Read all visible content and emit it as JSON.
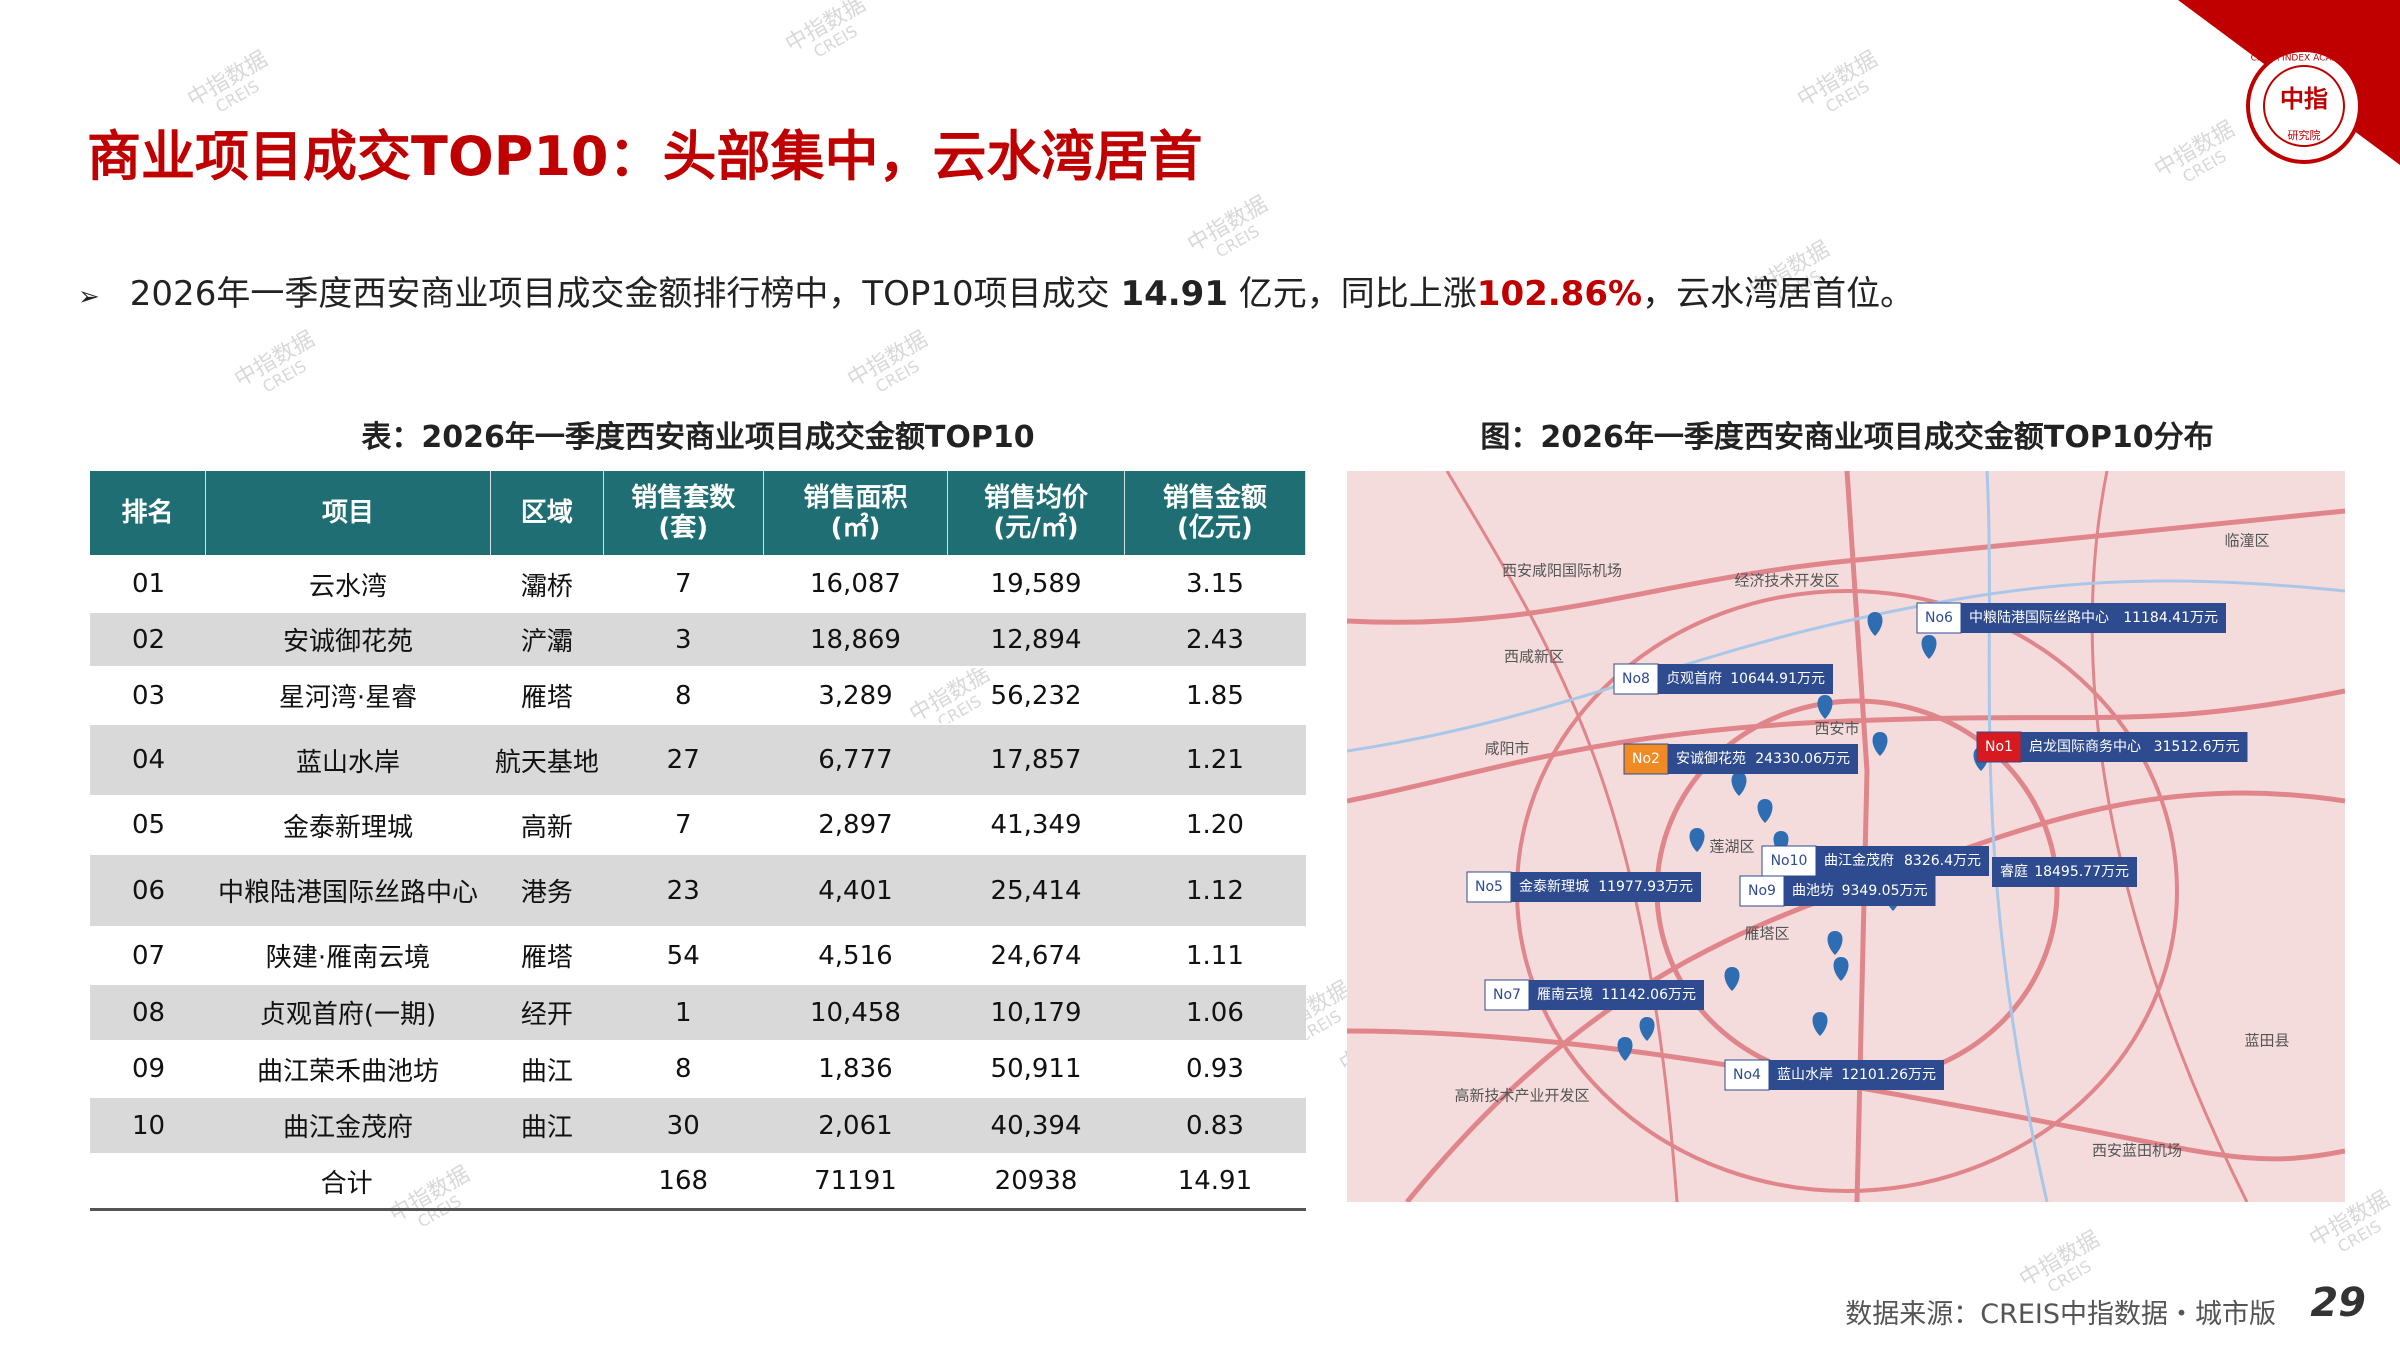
{
  "header": {
    "title": "商业项目成交TOP10：头部集中，云水湾居首",
    "logo_center": "中指",
    "logo_ring": "CHINA INDEX ACADEMY",
    "logo_bottom": "研究院"
  },
  "bullet": {
    "marker": "➢",
    "text1": "2026年一季度西安商业项目成交金额排行榜中，TOP10项目成交 ",
    "total": "14.91",
    "text2": " 亿元，同比上涨",
    "growth": "102.86%",
    "text3": "，云水湾居首位。"
  },
  "table": {
    "caption": "表：2026年一季度西安商业项目成交金额TOP10",
    "headers": [
      "排名",
      "项目",
      "区域",
      "销售套数\n(套)",
      "销售面积\n(㎡)",
      "销售均价\n(元/㎡)",
      "销售金额\n(亿元)"
    ],
    "rows": [
      [
        "01",
        "云水湾",
        "灞桥",
        "7",
        "16,087",
        "19,589",
        "3.15"
      ],
      [
        "02",
        "安诚御花苑",
        "浐灞",
        "3",
        "18,869",
        "12,894",
        "2.43"
      ],
      [
        "03",
        "星河湾·星睿",
        "雁塔",
        "8",
        "3,289",
        "56,232",
        "1.85"
      ],
      [
        "04",
        "蓝山水岸",
        "航天基地",
        "27",
        "6,777",
        "17,857",
        "1.21"
      ],
      [
        "05",
        "金泰新理城",
        "高新",
        "7",
        "2,897",
        "41,349",
        "1.20"
      ],
      [
        "06",
        "中粮陆港国际丝路中心",
        "港务",
        "23",
        "4,401",
        "25,414",
        "1.12"
      ],
      [
        "07",
        "陕建·雁南云境",
        "雁塔",
        "54",
        "4,516",
        "24,674",
        "1.11"
      ],
      [
        "08",
        "贞观首府(一期)",
        "经开",
        "1",
        "10,458",
        "10,179",
        "1.06"
      ],
      [
        "09",
        "曲江荣禾曲池坊",
        "曲江",
        "8",
        "1,836",
        "50,911",
        "0.93"
      ],
      [
        "10",
        "曲江金茂府",
        "曲江",
        "30",
        "2,061",
        "40,394",
        "0.83"
      ]
    ],
    "total": [
      "合计",
      "168",
      "71191",
      "20938",
      "14.91"
    ]
  },
  "map": {
    "caption": "图：2026年一季度西安商业项目成交金额TOP10分布",
    "callouts": [
      {
        "no": "No6",
        "name": "中粮陆港国际丝路中心",
        "amount": "11184.41万元"
      },
      {
        "no": "No8",
        "name": "贞观首府",
        "amount": "10644.91万元"
      },
      {
        "no": "No2",
        "name": "安诚御花苑",
        "amount": "24330.06万元"
      },
      {
        "no": "No1",
        "name": "启龙国际商务中心",
        "amount": "31512.6万元"
      },
      {
        "no": "No10",
        "name": "曲江金茂府",
        "amount": "8326.4万元"
      },
      {
        "name": "睿庭",
        "amount": "18495.77万元"
      },
      {
        "no": "No5",
        "name": "金泰新理城",
        "amount": "11977.93万元"
      },
      {
        "no": "No9",
        "name": "曲池坊",
        "amount": "9349.05万元"
      },
      {
        "no": "No7",
        "name": "雁南云境",
        "amount": "11142.06万元"
      },
      {
        "no": "No4",
        "name": "蓝山水岸",
        "amount": "12101.26万元"
      }
    ],
    "places": [
      "西安咸阳国际机场",
      "经济技术开发区",
      "西咸新区",
      "咸阳市",
      "西安市",
      "莲湖区",
      "雁塔区",
      "高新技术产业开发区",
      "临潼区",
      "蓝田县",
      "西安蓝田机场"
    ]
  },
  "watermark": {
    "cn": "中指数据",
    "en": "CREIS"
  },
  "footer": {
    "source": "数据来源：CREIS中指数据・城市版",
    "page": "29"
  }
}
